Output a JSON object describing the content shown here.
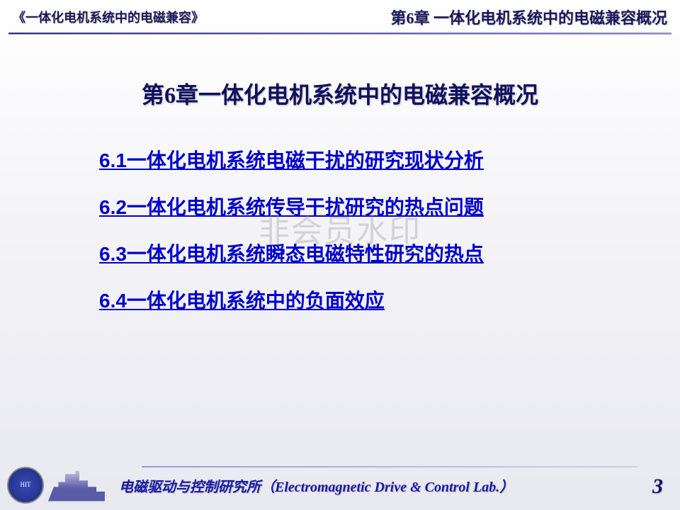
{
  "header": {
    "book_title": "《一体化电机系统中的电磁兼容》",
    "chapter_header": "第6章  一体化电机系统中的电磁兼容概况"
  },
  "main": {
    "title": "第6章一体化电机系统中的电磁兼容概况",
    "toc": [
      "6.1一体化电机系统电磁干扰的研究现状分析",
      "6.2一体化电机系统传导干扰研究的热点问题",
      "6.3一体化电机系统瞬态电磁特性研究的热点",
      "6.4一体化电机系统中的负面效应"
    ]
  },
  "watermark": "非会员水印",
  "footer": {
    "university_short": "HIT",
    "lab_name": "电磁驱动与控制研究所（Electromagnetic Drive & Control Lab.）",
    "page_number": "3"
  },
  "colors": {
    "heading": "#101060",
    "link": "#0000cc",
    "accent_line": "#2a2a8a",
    "bg_top": "#ffffff",
    "bg_bottom": "#e8e8f0"
  }
}
